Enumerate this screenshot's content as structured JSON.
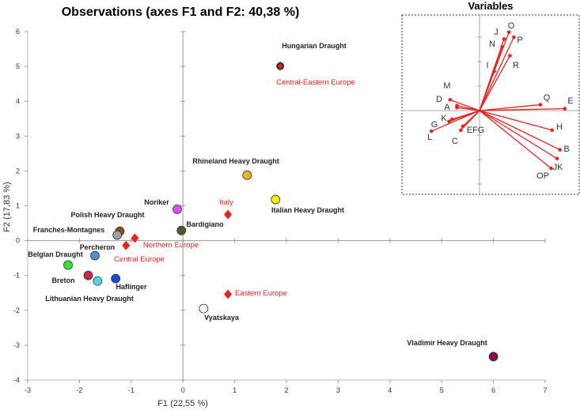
{
  "chart_data": [
    {
      "type": "scatter",
      "title": "Observations (axes F1 and F2: 40,38 %)",
      "xlabel": "F1 (22,55 %)",
      "ylabel": "F2 (17,83 %)",
      "xlim": [
        -3,
        7
      ],
      "ylim": [
        -4,
        6
      ],
      "xticks": [
        "-3",
        "-2",
        "-1",
        "0",
        "1",
        "2",
        "3",
        "4",
        "5",
        "6",
        "7"
      ],
      "yticks": [
        "-4",
        "-3",
        "-2",
        "-1",
        "0",
        "1",
        "2",
        "3",
        "4",
        "5",
        "6"
      ],
      "points": [
        {
          "name": "Hungarian Draught",
          "x": 1.88,
          "y": 5.01,
          "color": "#222222"
        },
        {
          "name": "Rhineland Heavy Draught",
          "x": 1.24,
          "y": 1.88,
          "color": "#f5b41c"
        },
        {
          "name": "Italian Heavy Draught",
          "x": 1.79,
          "y": 1.18,
          "color": "#f6f000"
        },
        {
          "name": "Noriker",
          "x": -0.11,
          "y": 0.9,
          "color": "#e450e6"
        },
        {
          "name": "Bardigiano",
          "x": -0.03,
          "y": 0.29,
          "color": "#4e5a2a"
        },
        {
          "name": "Polish Heavy Draught",
          "x": -1.22,
          "y": 0.27,
          "color": "#9a4a12"
        },
        {
          "name": "Franches-Montagnes",
          "x": -1.27,
          "y": 0.16,
          "color": "#a0a0a0"
        },
        {
          "name": "Percheron",
          "x": -1.7,
          "y": -0.43,
          "color": "#5b8ccc"
        },
        {
          "name": "Belgian Draught",
          "x": -2.22,
          "y": -0.7,
          "color": "#33e633"
        },
        {
          "name": "Breton",
          "x": -1.83,
          "y": -1.0,
          "color": "#c8264f"
        },
        {
          "name": "Lithuanian Heavy Draught",
          "x": -1.65,
          "y": -1.16,
          "color": "#4fd8ec"
        },
        {
          "name": "Haflinger",
          "x": -1.3,
          "y": -1.09,
          "color": "#1a48d8"
        },
        {
          "name": "Vyatskaya",
          "x": 0.4,
          "y": -1.95,
          "color": "#ffffff"
        },
        {
          "name": "Vladimir Heavy Draught",
          "x": 6.0,
          "y": -3.33,
          "color": "#8a0a4a"
        }
      ],
      "supplementary": [
        {
          "name": "Central-Eastern Europe",
          "x": 1.88,
          "y": 5.01
        },
        {
          "name": "Italy",
          "x": 0.87,
          "y": 0.75
        },
        {
          "name": "Northern Europe",
          "x": -0.93,
          "y": 0.07
        },
        {
          "name": "Central Europe",
          "x": -1.1,
          "y": -0.14
        },
        {
          "name": "Eastern Europe",
          "x": 0.87,
          "y": -1.54
        }
      ],
      "supplementary_color": "#e8231f"
    },
    {
      "type": "vectors",
      "title": "Variables",
      "color": "#e8231f",
      "vectors": [
        {
          "name": "O",
          "x": 0.3,
          "y": 0.8
        },
        {
          "name": "J",
          "x": 0.25,
          "y": 0.73
        },
        {
          "name": "N",
          "x": 0.23,
          "y": 0.65
        },
        {
          "name": "P",
          "x": 0.35,
          "y": 0.75
        },
        {
          "name": "R",
          "x": 0.31,
          "y": 0.56
        },
        {
          "name": "I",
          "x": 0.15,
          "y": 0.4
        },
        {
          "name": "M",
          "x": -0.23,
          "y": 0.05
        },
        {
          "name": "D",
          "x": -0.3,
          "y": 0.11
        },
        {
          "name": "A",
          "x": -0.23,
          "y": 0.03
        },
        {
          "name": "Q",
          "x": 0.62,
          "y": 0.06
        },
        {
          "name": "E",
          "x": 0.87,
          "y": 0.02
        },
        {
          "name": "K",
          "x": -0.28,
          "y": -0.09
        },
        {
          "name": "G",
          "x": -0.31,
          "y": -0.11
        },
        {
          "name": "L",
          "x": -0.49,
          "y": -0.21
        },
        {
          "name": "EFG",
          "x": -0.17,
          "y": -0.16
        },
        {
          "name": "C",
          "x": -0.19,
          "y": -0.2
        },
        {
          "name": "H",
          "x": 0.74,
          "y": -0.2
        },
        {
          "name": "B",
          "x": 0.82,
          "y": -0.4
        },
        {
          "name": "JK",
          "x": 0.79,
          "y": -0.49
        },
        {
          "name": "OP",
          "x": 0.73,
          "y": -0.59
        }
      ]
    }
  ]
}
